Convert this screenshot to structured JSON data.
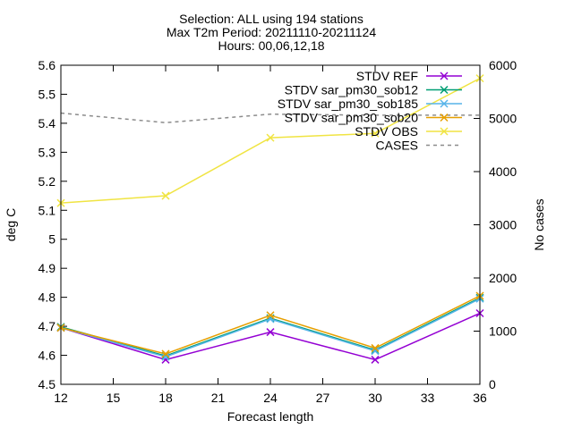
{
  "chart_data": {
    "type": "line",
    "title": [
      "Selection: ALL using   194 stations",
      "Max T2m   Period: 20211110-20211124",
      "Hours: 00,06,12,18"
    ],
    "xlabel": "Forecast length",
    "ylabel": "deg C",
    "y2label": "No cases",
    "xlim": [
      12,
      36
    ],
    "ylim": [
      4.5,
      5.6
    ],
    "y2lim": [
      0,
      6000
    ],
    "xticks": [
      "12",
      "15",
      "18",
      "21",
      "24",
      "27",
      "30",
      "33",
      "36"
    ],
    "yticks": [
      "4.5",
      "4.6",
      "4.7",
      "4.8",
      "4.9",
      "5",
      "5.1",
      "5.2",
      "5.3",
      "5.4",
      "5.5",
      "5.6"
    ],
    "y2ticks": [
      "0",
      "1000",
      "2000",
      "3000",
      "4000",
      "5000",
      "6000"
    ],
    "legend_position": "top-right",
    "x": [
      12,
      18,
      24,
      30,
      36
    ],
    "series": [
      {
        "name": "STDV REF",
        "axis": "y",
        "color": "#9400d3",
        "marker": "x",
        "values": [
          4.695,
          4.585,
          4.68,
          4.585,
          4.745
        ]
      },
      {
        "name": "STDV sar_pm30_sob12",
        "axis": "y",
        "color": "#009e73",
        "marker": "x",
        "values": [
          4.698,
          4.598,
          4.728,
          4.618,
          4.798
        ]
      },
      {
        "name": "STDV sar_pm30_sob185",
        "axis": "y",
        "color": "#56b4e9",
        "marker": "x",
        "values": [
          4.695,
          4.595,
          4.725,
          4.615,
          4.795
        ]
      },
      {
        "name": "STDV sar_pm30_sob20",
        "axis": "y",
        "color": "#e69f00",
        "marker": "x",
        "values": [
          4.695,
          4.605,
          4.738,
          4.625,
          4.805
        ]
      },
      {
        "name": "STDV OBS",
        "axis": "y",
        "color": "#f0e442",
        "marker": "x",
        "values": [
          5.125,
          5.15,
          5.35,
          5.365,
          5.555
        ]
      },
      {
        "name": "CASES",
        "axis": "y2",
        "color": "#8c8c8c",
        "marker": "none",
        "dashed": true,
        "values": [
          5100,
          4920,
          5080,
          5060,
          5060
        ]
      }
    ]
  }
}
